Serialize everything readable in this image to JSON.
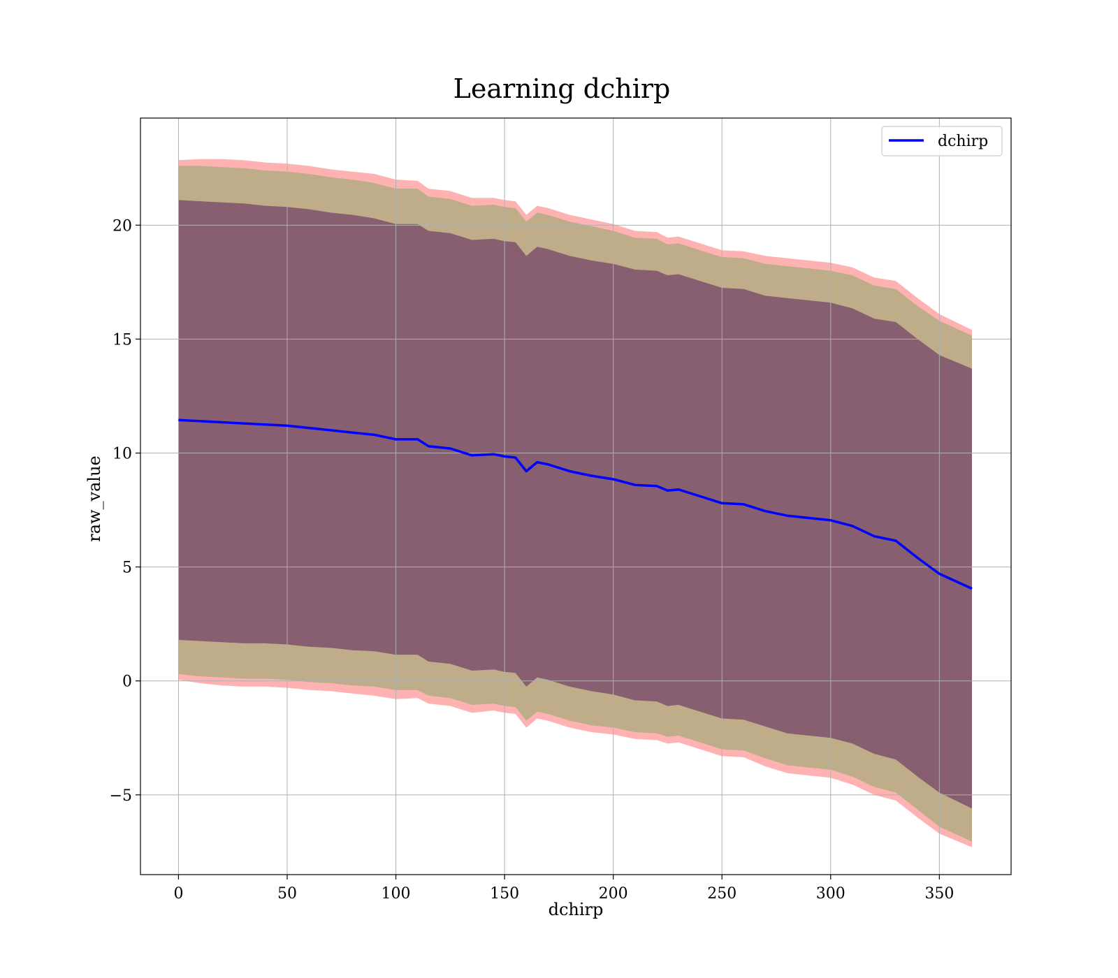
{
  "chart_data": {
    "type": "area",
    "title": "Learning dchirp",
    "xlabel": "dchirp",
    "ylabel": "raw_value",
    "xlim": [
      -17.5,
      383
    ],
    "ylim": [
      -8.5,
      24.7
    ],
    "xticks": [
      0,
      50,
      100,
      150,
      200,
      250,
      300,
      350
    ],
    "xtick_labels": [
      "0",
      "50",
      "100",
      "150",
      "200",
      "250",
      "300",
      "350"
    ],
    "yticks": [
      -5,
      0,
      5,
      10,
      15,
      20
    ],
    "ytick_labels": [
      "−5",
      "0",
      "5",
      "10",
      "15",
      "20"
    ],
    "grid": true,
    "legend": {
      "position": "top-right",
      "entries": [
        "dchirp"
      ]
    },
    "colors": {
      "line": "#0000ff",
      "band_outer": "#ff0000",
      "band_middle": "#2ca02c",
      "band_inner": "#440154"
    },
    "series": [
      {
        "name": "dchirp",
        "x": [
          0,
          10,
          20,
          30,
          40,
          50,
          60,
          70,
          80,
          90,
          100,
          110,
          115,
          125,
          135,
          145,
          150,
          155,
          160,
          165,
          170,
          180,
          190,
          200,
          210,
          220,
          225,
          230,
          240,
          250,
          260,
          270,
          280,
          290,
          300,
          310,
          320,
          330,
          340,
          350,
          365
        ],
        "y": [
          11.45,
          11.4,
          11.35,
          11.3,
          11.25,
          11.2,
          11.1,
          11.0,
          10.9,
          10.8,
          10.6,
          10.6,
          10.3,
          10.2,
          9.9,
          9.95,
          9.85,
          9.8,
          9.2,
          9.6,
          9.5,
          9.2,
          9.0,
          8.85,
          8.6,
          8.55,
          8.35,
          8.4,
          8.1,
          7.8,
          7.75,
          7.45,
          7.25,
          7.15,
          7.05,
          6.8,
          6.35,
          6.15,
          5.4,
          4.7,
          4.05
        ]
      }
    ],
    "bands": [
      {
        "level": "outer",
        "offsets": [
          11.4,
          11.5,
          11.55,
          11.55,
          11.5,
          11.5,
          11.5,
          11.45,
          11.45,
          11.45,
          11.4,
          11.35,
          11.3,
          11.3,
          11.3,
          11.25,
          11.25,
          11.25,
          11.25,
          11.25,
          11.25,
          11.25,
          11.25,
          11.2,
          11.15,
          11.15,
          11.1,
          11.1,
          11.1,
          11.1,
          11.1,
          11.2,
          11.3,
          11.3,
          11.3,
          11.35,
          11.35,
          11.4,
          11.4,
          11.4,
          11.35
        ]
      },
      {
        "level": "middle",
        "offsets": [
          11.15,
          11.2,
          11.2,
          11.2,
          11.15,
          11.15,
          11.15,
          11.1,
          11.1,
          11.05,
          11.0,
          11.0,
          10.95,
          10.95,
          10.95,
          10.95,
          10.95,
          10.95,
          10.95,
          10.95,
          10.95,
          10.95,
          10.95,
          10.9,
          10.85,
          10.85,
          10.8,
          10.8,
          10.8,
          10.8,
          10.8,
          10.85,
          10.95,
          10.95,
          10.95,
          11.0,
          11.0,
          11.05,
          11.05,
          11.1,
          11.1
        ]
      },
      {
        "level": "inner",
        "offsets": [
          9.65,
          9.65,
          9.65,
          9.65,
          9.6,
          9.6,
          9.6,
          9.55,
          9.55,
          9.5,
          9.45,
          9.45,
          9.45,
          9.45,
          9.45,
          9.45,
          9.45,
          9.45,
          9.45,
          9.45,
          9.45,
          9.45,
          9.45,
          9.45,
          9.45,
          9.45,
          9.45,
          9.45,
          9.45,
          9.45,
          9.45,
          9.45,
          9.55,
          9.55,
          9.55,
          9.55,
          9.55,
          9.6,
          9.6,
          9.6,
          9.65
        ]
      }
    ]
  }
}
